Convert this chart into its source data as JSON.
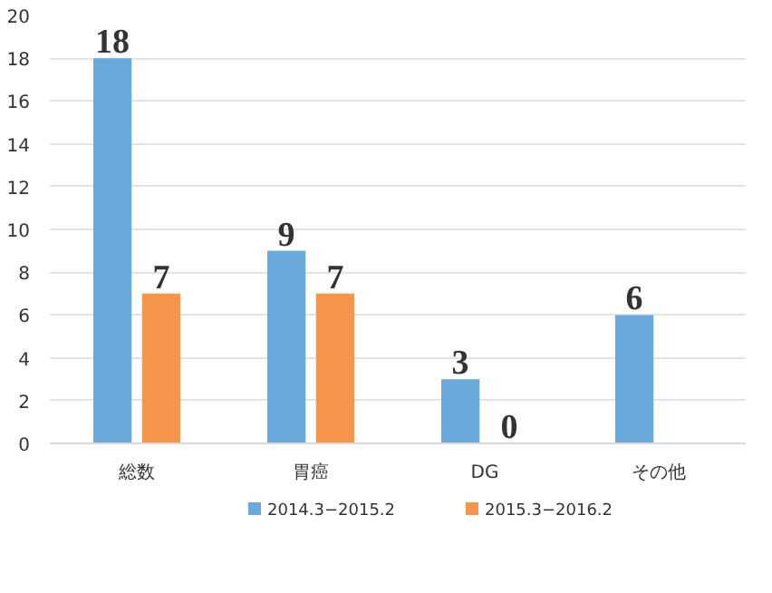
{
  "chart_data": {
    "type": "bar",
    "categories": [
      "総数",
      "胃癌",
      "DG",
      "その他"
    ],
    "series": [
      {
        "name": "2014.3−2015.2",
        "color": "#6aa9dc",
        "values": [
          18,
          9,
          3,
          6
        ]
      },
      {
        "name": "2015.3−2016.2",
        "color": "#f7954a",
        "values": [
          7,
          7,
          0,
          null
        ]
      }
    ],
    "ylim": [
      0,
      20
    ],
    "yticks": [
      0,
      2,
      4,
      6,
      8,
      10,
      12,
      14,
      16,
      18,
      20
    ],
    "grid": "y",
    "legend": "bottom",
    "data_labels": true
  }
}
